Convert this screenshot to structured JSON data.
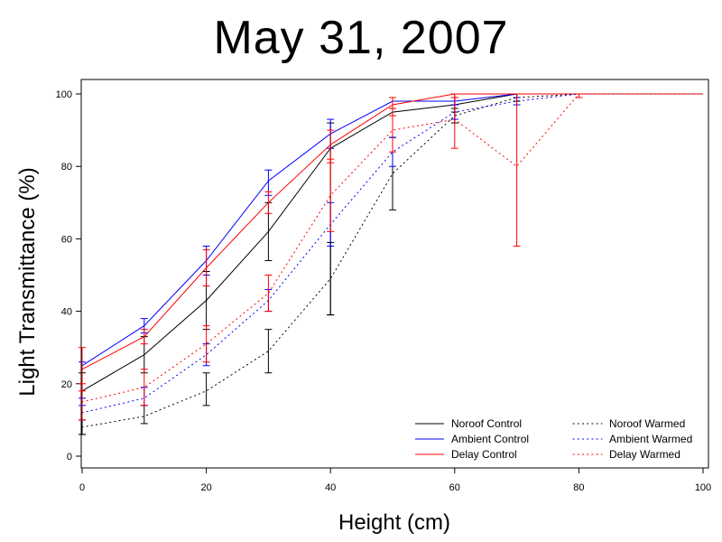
{
  "chart_data": {
    "type": "line",
    "title": "May 31, 2007",
    "xlabel": "Height (cm)",
    "ylabel": "Light Transmittance (%)",
    "xlim": [
      0,
      100
    ],
    "ylim": [
      0,
      100
    ],
    "xticks": [
      0,
      20,
      40,
      60,
      80,
      100
    ],
    "yticks": [
      0,
      20,
      40,
      60,
      80,
      100
    ],
    "grid": false,
    "legend_position": "bottom-right",
    "series": [
      {
        "name": "Noroof Control",
        "color": "#000000",
        "line_style": "solid",
        "x": [
          0,
          10,
          20,
          30,
          40,
          50,
          60,
          70,
          80,
          90,
          100
        ],
        "y": [
          18,
          28,
          43,
          62,
          85,
          95,
          97,
          100,
          100,
          100,
          100
        ],
        "err_low": [
          6,
          23,
          35,
          54,
          39,
          88,
          95,
          99,
          100,
          100,
          100
        ],
        "err_high": [
          23,
          33,
          51,
          70,
          92,
          99,
          99,
          100,
          100,
          100,
          100
        ]
      },
      {
        "name": "Ambient Control",
        "color": "#0000ff",
        "line_style": "solid",
        "x": [
          0,
          10,
          20,
          30,
          40,
          50,
          60,
          70,
          80,
          90,
          100
        ],
        "y": [
          25,
          36,
          54,
          76,
          89,
          98,
          98,
          100,
          100,
          100,
          100
        ],
        "err_low": [
          16,
          34,
          50,
          72,
          85,
          96,
          97,
          99,
          100,
          100,
          100
        ],
        "err_high": [
          26,
          38,
          58,
          79,
          93,
          99,
          99,
          100,
          100,
          100,
          100
        ]
      },
      {
        "name": "Delay Control",
        "color": "#ff0000",
        "line_style": "solid",
        "x": [
          0,
          10,
          20,
          30,
          40,
          50,
          60,
          70,
          80,
          90,
          100
        ],
        "y": [
          24,
          33,
          52,
          70,
          86,
          97,
          100,
          100,
          100,
          100,
          100
        ],
        "err_low": [
          18,
          31,
          47,
          67,
          81,
          94,
          99,
          99,
          100,
          100,
          100
        ],
        "err_high": [
          30,
          35,
          57,
          73,
          90,
          99,
          100,
          100,
          100,
          100,
          100
        ]
      },
      {
        "name": "Noroof Warmed",
        "color": "#000000",
        "line_style": "dotted",
        "x": [
          0,
          10,
          20,
          30,
          40,
          50,
          60,
          70,
          80,
          90,
          100
        ],
        "y": [
          8,
          11,
          18,
          29,
          49,
          78,
          94,
          99,
          100,
          100,
          100
        ],
        "err_low": [
          6,
          9,
          14,
          23,
          39,
          68,
          92,
          98,
          100,
          100,
          100
        ],
        "err_high": [
          10,
          14,
          23,
          35,
          59,
          88,
          96,
          100,
          100,
          100,
          100
        ]
      },
      {
        "name": "Ambient Warmed",
        "color": "#0000ff",
        "line_style": "dotted",
        "x": [
          0,
          10,
          20,
          30,
          40,
          50,
          60,
          70,
          80,
          90,
          100
        ],
        "y": [
          12,
          16,
          28,
          43,
          64,
          84,
          95,
          98,
          100,
          100,
          100
        ],
        "err_low": [
          10,
          14,
          25,
          40,
          58,
          80,
          93,
          97,
          100,
          100,
          100
        ],
        "err_high": [
          14,
          19,
          31,
          46,
          70,
          88,
          97,
          99,
          100,
          100,
          100
        ]
      },
      {
        "name": "Delay Warmed",
        "color": "#ff0000",
        "line_style": "dotted",
        "x": [
          0,
          10,
          20,
          30,
          40,
          50,
          60,
          70,
          80,
          90,
          100
        ],
        "y": [
          15,
          19,
          31,
          45,
          72,
          90,
          93,
          80,
          100,
          100,
          100
        ],
        "err_low": [
          10,
          14,
          26,
          40,
          62,
          84,
          85,
          58,
          99,
          100,
          100
        ],
        "err_high": [
          20,
          24,
          36,
          50,
          82,
          96,
          100,
          100,
          100,
          100,
          100
        ]
      }
    ]
  }
}
